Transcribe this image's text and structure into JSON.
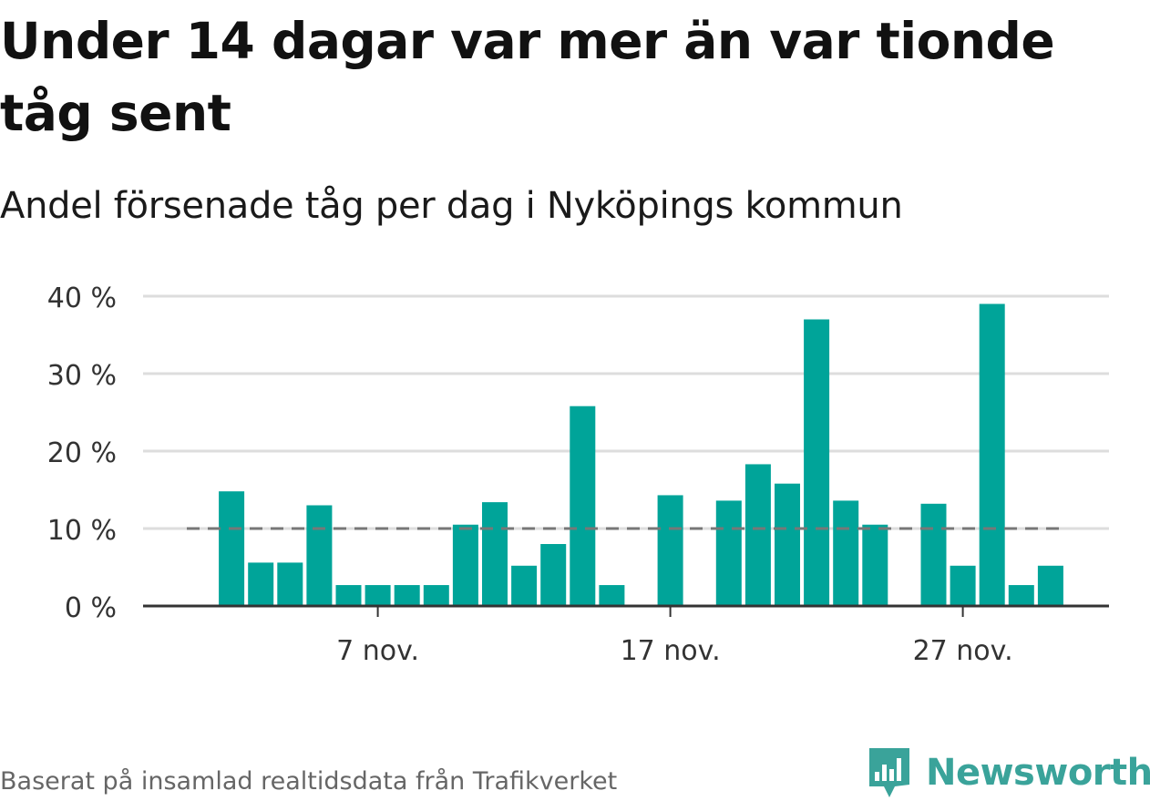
{
  "title": "Under 14 dagar var mer än var tionde tåg sent",
  "subtitle": "Andel försenade tåg per dag i Nyköpings kommun",
  "source": "Baserat på insamlad realtidsdata från Trafikverket",
  "brand": {
    "name": "Newsworthy",
    "icon": "newsworthy-logo-icon",
    "color": "#3aa39a"
  },
  "chart_data": {
    "type": "bar",
    "x_start": "1 nov.",
    "x_end": "30 nov.",
    "days": [
      1,
      2,
      3,
      4,
      5,
      6,
      7,
      8,
      9,
      10,
      11,
      12,
      13,
      14,
      15,
      16,
      17,
      18,
      19,
      20,
      21,
      22,
      23,
      24,
      25,
      26,
      27,
      28,
      29,
      30
    ],
    "values": [
      null,
      14.8,
      5.6,
      5.6,
      13,
      2.7,
      2.7,
      2.7,
      2.7,
      10.5,
      13.4,
      5.2,
      8,
      25.8,
      2.7,
      null,
      14.3,
      null,
      13.6,
      18.3,
      15.8,
      37,
      13.6,
      10.5,
      null,
      13.2,
      5.2,
      39,
      2.7,
      5.2
    ],
    "ylim": [
      0,
      40
    ],
    "yticks": [
      0,
      10,
      20,
      30,
      40
    ],
    "ytick_labels": [
      "0 %",
      "10 %",
      "20 %",
      "30 %",
      "40 %"
    ],
    "xtick_days": [
      7,
      17,
      27
    ],
    "xtick_labels": [
      "7 nov.",
      "17 nov.",
      "27 nov."
    ],
    "reference_line": 10,
    "xlabel": "",
    "ylabel": "",
    "grid": true,
    "colors": {
      "bar": "#00a499",
      "grid": "#dddddd",
      "axis": "#333333",
      "reference": "#777777"
    }
  }
}
